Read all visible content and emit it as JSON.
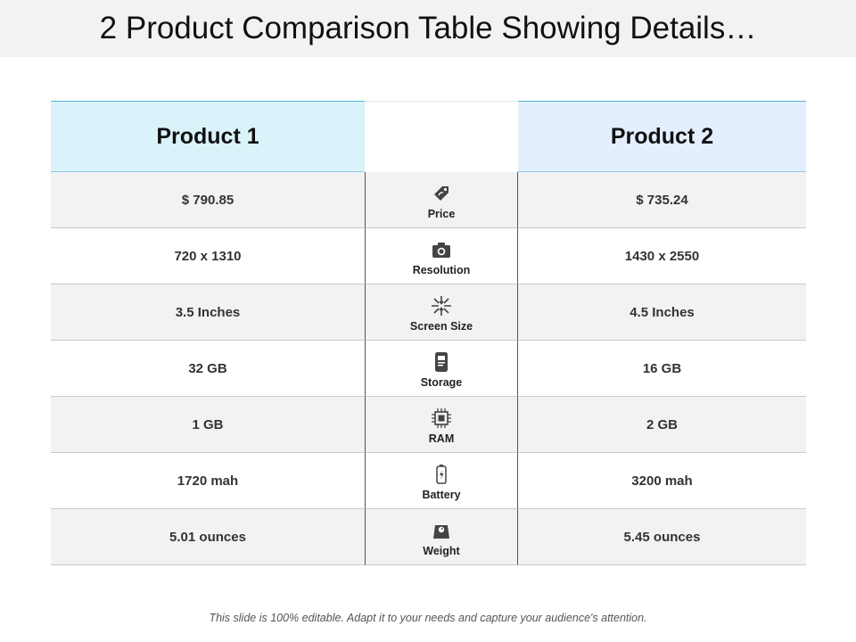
{
  "header": {
    "title": "2 Product Comparison Table Showing Details…"
  },
  "table": {
    "headers": [
      "Product 1",
      "Product 2"
    ],
    "rows": [
      [
        "$ 790.85",
        "Price",
        "$ 735.24"
      ],
      [
        "720 x 1310",
        "Resolution",
        "1430 x 2550"
      ],
      [
        "3.5 Inches",
        "Screen Size",
        "4.5 Inches"
      ],
      [
        "32 GB",
        "Storage",
        "16 GB"
      ],
      [
        "1 GB",
        "RAM",
        "2 GB"
      ],
      [
        "1720 mah",
        "Battery",
        "3200 mah"
      ],
      [
        "5.01 ounces",
        "Weight",
        "5.45 ounces"
      ]
    ]
  },
  "footer": {
    "text": "This slide is 100% editable. Adapt it to your needs and capture your audience's attention."
  }
}
